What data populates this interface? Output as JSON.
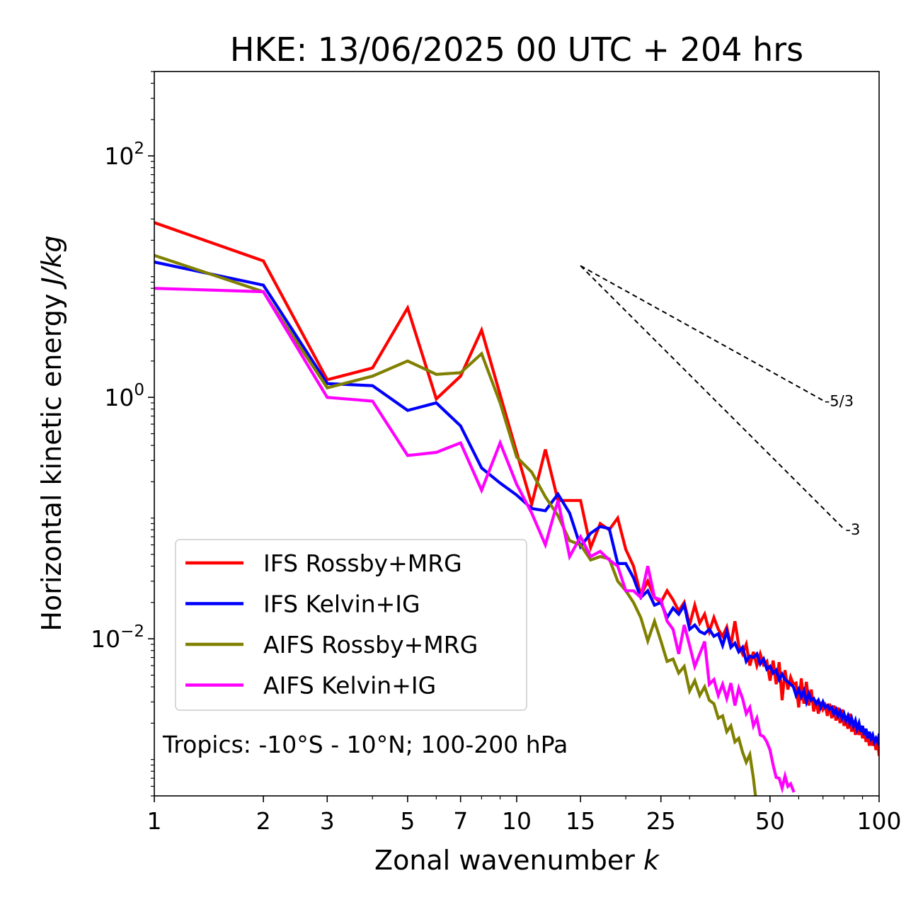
{
  "chart_data": {
    "type": "line",
    "title": "HKE: 13/06/2025 00 UTC + 204 hrs",
    "xlabel_text": "Zonal wavenumber ",
    "xlabel_italic": "k",
    "ylabel_text": "Horizontal kinetic energy ",
    "ylabel_italic": "J/kg",
    "xscale": "log",
    "yscale": "log",
    "xlim": [
      1,
      100
    ],
    "ylim": [
      0.0005,
      500
    ],
    "x_ticks": [
      1,
      2,
      3,
      5,
      7,
      10,
      15,
      25,
      50,
      100
    ],
    "x_tick_labels": [
      "1",
      "2",
      "3",
      "5",
      "7",
      "10",
      "15",
      "25",
      "50",
      "100"
    ],
    "y_ticks": [
      {
        "value": 100,
        "base": "10",
        "exp": "2"
      },
      {
        "value": 1,
        "base": "10",
        "exp": "0"
      },
      {
        "value": 0.01,
        "base": "10",
        "exp": "−2"
      }
    ],
    "grid": false,
    "legend_position": "lower-left",
    "annotation": "Tropics: -10°S - 10°N; 100-200 hPa",
    "reference_lines": [
      {
        "label": "-5/3",
        "slope": -1.6667,
        "x": [
          15,
          70
        ],
        "y0": 12.3
      },
      {
        "label": "-3",
        "slope": -3,
        "x": [
          15,
          80
        ],
        "y0": 12.3
      }
    ],
    "series": [
      {
        "name": "IFS Rossby+MRG",
        "color": "#ff0000",
        "x": [
          1,
          2,
          3,
          4,
          5,
          6,
          7,
          8,
          9,
          10,
          11,
          12,
          13,
          14,
          15,
          16,
          17,
          18,
          19,
          20,
          21,
          22,
          23,
          24,
          25,
          26,
          27,
          28,
          29,
          30,
          31,
          32,
          33,
          34,
          35,
          36,
          37,
          38,
          39,
          40,
          41,
          42,
          43,
          44,
          45,
          46,
          47,
          48,
          49,
          50,
          51,
          52,
          53,
          54,
          55,
          56,
          57,
          58,
          59,
          60,
          61,
          62,
          63,
          64,
          65,
          66,
          67,
          68,
          69,
          70,
          71,
          72,
          73,
          74,
          75,
          76,
          77,
          78,
          79,
          80,
          81,
          82,
          83,
          84,
          85,
          86,
          87,
          88,
          89,
          90,
          91,
          92,
          93,
          94,
          95,
          96,
          97,
          98,
          99,
          100
        ],
        "y": [
          28,
          13.5,
          1.4,
          1.75,
          5.5,
          0.97,
          1.5,
          3.6,
          1.05,
          0.35,
          0.13,
          0.37,
          0.14,
          0.14,
          0.14,
          0.057,
          0.09,
          0.08,
          0.1,
          0.055,
          0.04,
          0.023,
          0.03,
          0.022,
          0.02,
          0.025,
          0.021,
          0.017,
          0.02,
          0.013,
          0.019,
          0.0135,
          0.016,
          0.0115,
          0.015,
          0.012,
          0.0105,
          0.0125,
          0.0088,
          0.014,
          0.0088,
          0.0075,
          0.009,
          0.006,
          0.0078,
          0.006,
          0.0075,
          0.0061,
          0.0065,
          0.0045,
          0.0066,
          0.0042,
          0.0064,
          0.0031,
          0.0055,
          0.0038,
          0.0048,
          0.0042,
          0.0043,
          0.0027,
          0.0047,
          0.0029,
          0.0044,
          0.0028,
          0.0038,
          0.0025,
          0.0031,
          0.0024,
          0.003,
          0.0026,
          0.0028,
          0.0023,
          0.0029,
          0.0022,
          0.0028,
          0.0021,
          0.0027,
          0.002,
          0.0026,
          0.0019,
          0.0022,
          0.0018,
          0.0024,
          0.0017,
          0.0021,
          0.0016,
          0.002,
          0.0016,
          0.0019,
          0.0015,
          0.0018,
          0.0014,
          0.0017,
          0.0013,
          0.0016,
          0.0013,
          0.0015,
          0.0012,
          0.0014,
          0.0011
        ]
      },
      {
        "name": "IFS Kelvin+IG",
        "color": "#0000ff",
        "x": [
          1,
          2,
          3,
          4,
          5,
          6,
          7,
          8,
          9,
          10,
          11,
          12,
          13,
          14,
          15,
          16,
          17,
          18,
          19,
          20,
          21,
          22,
          23,
          24,
          25,
          26,
          27,
          28,
          29,
          30,
          31,
          32,
          33,
          34,
          35,
          36,
          37,
          38,
          39,
          40,
          41,
          42,
          43,
          44,
          45,
          46,
          47,
          48,
          49,
          50,
          51,
          52,
          53,
          54,
          55,
          56,
          57,
          58,
          59,
          60,
          61,
          62,
          63,
          64,
          65,
          66,
          67,
          68,
          69,
          70,
          71,
          72,
          73,
          74,
          75,
          76,
          77,
          78,
          79,
          80,
          81,
          82,
          83,
          84,
          85,
          86,
          87,
          88,
          89,
          90,
          91,
          92,
          93,
          94,
          95,
          96,
          97,
          98,
          99,
          100
        ],
        "y": [
          13.2,
          8.5,
          1.3,
          1.25,
          0.78,
          0.9,
          0.58,
          0.26,
          0.195,
          0.155,
          0.12,
          0.115,
          0.158,
          0.11,
          0.058,
          0.075,
          0.085,
          0.082,
          0.042,
          0.042,
          0.032,
          0.022,
          0.025,
          0.019,
          0.02,
          0.015,
          0.018,
          0.016,
          0.019,
          0.012,
          0.013,
          0.0115,
          0.011,
          0.012,
          0.0105,
          0.011,
          0.0088,
          0.0115,
          0.0085,
          0.0092,
          0.0078,
          0.0085,
          0.0065,
          0.0072,
          0.007,
          0.0075,
          0.0062,
          0.0068,
          0.0056,
          0.0059,
          0.0052,
          0.0055,
          0.0046,
          0.0051,
          0.0046,
          0.0044,
          0.0042,
          0.004,
          0.0034,
          0.0038,
          0.0033,
          0.0037,
          0.003,
          0.0035,
          0.0031,
          0.0032,
          0.0029,
          0.0031,
          0.0027,
          0.003,
          0.0027,
          0.0028,
          0.0026,
          0.0027,
          0.0024,
          0.0026,
          0.0023,
          0.0025,
          0.0022,
          0.0024,
          0.0021,
          0.0023,
          0.002,
          0.0022,
          0.0019,
          0.0021,
          0.0018,
          0.002,
          0.0017,
          0.0019,
          0.0016,
          0.0018,
          0.0015,
          0.0017,
          0.0015,
          0.0016,
          0.0014,
          0.0015,
          0.0014,
          0.0016
        ]
      },
      {
        "name": "AIFS Rossby+MRG",
        "color": "#808000",
        "x": [
          1,
          2,
          3,
          4,
          5,
          6,
          7,
          8,
          9,
          10,
          11,
          12,
          13,
          14,
          15,
          16,
          17,
          18,
          19,
          20,
          21,
          22,
          23,
          24,
          25,
          26,
          27,
          28,
          29,
          30,
          31,
          32,
          33,
          34,
          35,
          36,
          37,
          38,
          39,
          40,
          41,
          42,
          43,
          44,
          45,
          46
        ],
        "y": [
          15,
          7.5,
          1.2,
          1.5,
          2,
          1.55,
          1.6,
          2.3,
          0.9,
          0.32,
          0.24,
          0.15,
          0.105,
          0.065,
          0.06,
          0.045,
          0.048,
          0.046,
          0.03,
          0.025,
          0.02,
          0.015,
          0.0096,
          0.014,
          0.0096,
          0.0065,
          0.0068,
          0.0052,
          0.0059,
          0.0037,
          0.0045,
          0.0034,
          0.004,
          0.0031,
          0.0029,
          0.0022,
          0.0023,
          0.0017,
          0.0019,
          0.0014,
          0.0015,
          0.00115,
          0.00095,
          0.0011,
          0.0007,
          0.0004
        ]
      },
      {
        "name": "AIFS Kelvin+IG",
        "color": "#ff00ff",
        "x": [
          1,
          2,
          3,
          4,
          5,
          6,
          7,
          8,
          9,
          10,
          11,
          12,
          13,
          14,
          15,
          16,
          17,
          18,
          19,
          20,
          21,
          22,
          23,
          24,
          25,
          26,
          27,
          28,
          29,
          30,
          31,
          32,
          33,
          34,
          35,
          36,
          37,
          38,
          39,
          40,
          41,
          42,
          43,
          44,
          45,
          46,
          47,
          48,
          49,
          50,
          51,
          52,
          53,
          54,
          55,
          56,
          57,
          58
        ],
        "y": [
          8,
          7.5,
          1.0,
          0.93,
          0.33,
          0.35,
          0.42,
          0.17,
          0.42,
          0.19,
          0.11,
          0.06,
          0.14,
          0.048,
          0.07,
          0.048,
          0.053,
          0.045,
          0.04,
          0.025,
          0.025,
          0.022,
          0.04,
          0.022,
          0.021,
          0.014,
          0.012,
          0.0075,
          0.013,
          0.0088,
          0.0059,
          0.0075,
          0.0095,
          0.0042,
          0.0046,
          0.0034,
          0.0042,
          0.0032,
          0.0043,
          0.0028,
          0.0039,
          0.0032,
          0.0024,
          0.0027,
          0.0019,
          0.0022,
          0.0016,
          0.00155,
          0.0014,
          0.0012,
          0.0009,
          0.00071,
          0.0007,
          0.00058,
          0.00073,
          0.0006,
          0.00063,
          0.00055
        ]
      }
    ]
  }
}
